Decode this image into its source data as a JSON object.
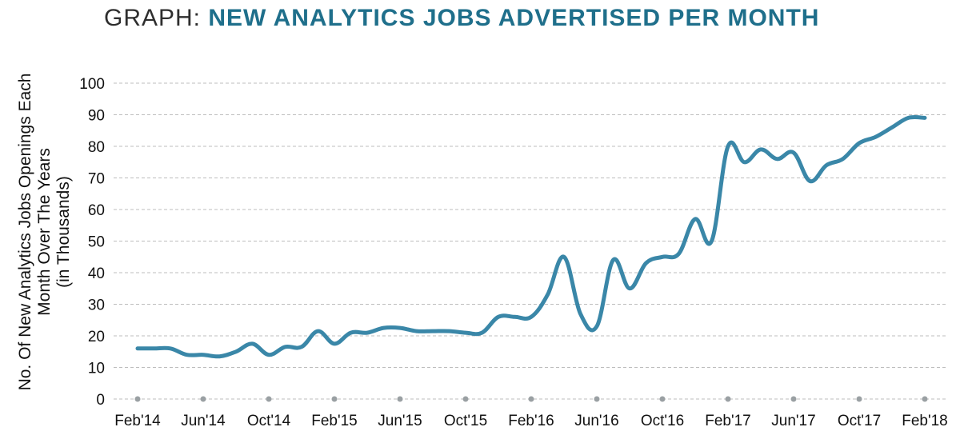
{
  "header": {
    "title_prefix": "GRAPH: ",
    "title_main": "NEW ANALYTICS JOBS ADVERTISED PER MONTH"
  },
  "chart_data": {
    "type": "line",
    "ylabel_lines": [
      "No. Of New Analytics Jobs Openings  Each",
      "Month Over The Years",
      "(in Thousands)"
    ],
    "ylim": [
      0,
      100
    ],
    "yticks": [
      0,
      10,
      20,
      30,
      40,
      50,
      60,
      70,
      80,
      90,
      100
    ],
    "xticks": [
      "Feb'14",
      "Jun'14",
      "Oct'14",
      "Feb'15",
      "Jun'15",
      "Oct'15",
      "Feb'16",
      "Jun'16",
      "Oct'16",
      "Feb'17",
      "Jun'17",
      "Oct'17",
      "Feb'18"
    ],
    "grid": "horizontal-dashed",
    "colors": {
      "line": "#3a87a8",
      "grid": "#bdbdbd",
      "tick_dot": "#9aa0a3",
      "title_accent": "#1f6f8b"
    },
    "series": [
      {
        "x": [
          "Feb'14",
          "Mar'14",
          "Apr'14",
          "May'14",
          "Jun'14",
          "Jul'14",
          "Aug'14",
          "Sep'14",
          "Oct'14",
          "Nov'14",
          "Dec'14",
          "Jan'15",
          "Feb'15",
          "Mar'15",
          "Apr'15",
          "May'15",
          "Jun'15",
          "Jul'15",
          "Aug'15",
          "Sep'15",
          "Oct'15",
          "Nov'15",
          "Dec'15",
          "Jan'16",
          "Feb'16",
          "Mar'16",
          "Apr'16",
          "May'16",
          "Jun'16",
          "Jul'16",
          "Aug'16",
          "Sep'16",
          "Oct'16",
          "Nov'16",
          "Dec'16",
          "Jan'17",
          "Feb'17",
          "Mar'17",
          "Apr'17",
          "May'17",
          "Jun'17",
          "Jul'17",
          "Aug'17",
          "Sep'17",
          "Oct'17",
          "Nov'17",
          "Dec'17",
          "Jan'18",
          "Feb'18"
        ],
        "values": [
          16,
          16,
          16,
          14,
          14,
          13.5,
          15,
          17.5,
          14,
          16.5,
          16.5,
          21.5,
          17.5,
          21,
          21,
          22.5,
          22.5,
          21.5,
          21.5,
          21.5,
          21,
          21,
          26,
          26,
          26,
          33,
          45,
          27,
          23,
          44,
          35,
          43,
          45,
          46,
          57,
          50,
          80,
          75,
          79,
          76,
          78,
          69,
          74,
          76,
          81,
          83,
          86,
          89,
          89
        ]
      }
    ]
  }
}
